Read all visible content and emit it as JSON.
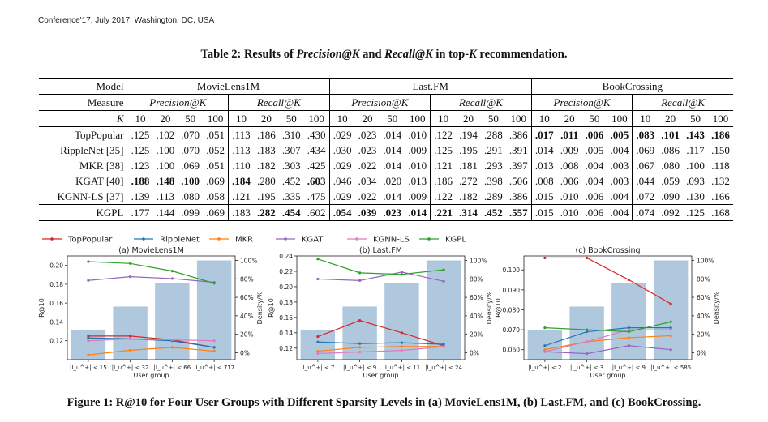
{
  "header": {
    "conference": "Conference'17, July 2017, Washington, DC, USA"
  },
  "table": {
    "caption_prefix": "Table 2: Results of ",
    "caption_precision": "Precision@K",
    "caption_and": " and ",
    "caption_recall": "Recall@K",
    "caption_in_top": " in top-",
    "caption_k": "K",
    "caption_suffix": " recommendation.",
    "model_label": "Model",
    "measure_label": "Measure",
    "k_label": "K",
    "datasets": [
      "MovieLens1M",
      "Last.FM",
      "BookCrossing"
    ],
    "measures": [
      "Precision@K",
      "Recall@K"
    ],
    "ks": [
      "10",
      "20",
      "50",
      "100"
    ],
    "rows": [
      {
        "model": "TopPopular",
        "values": [
          ".125",
          ".102",
          ".070",
          ".051",
          ".113",
          ".186",
          ".310",
          ".430",
          ".029",
          ".023",
          ".014",
          ".010",
          ".122",
          ".194",
          ".288",
          ".386",
          ".017",
          ".011",
          ".006",
          ".005",
          ".083",
          ".101",
          ".143",
          ".186"
        ]
      },
      {
        "model": "RippleNet [35]",
        "values": [
          ".125",
          ".100",
          ".070",
          ".052",
          ".113",
          ".183",
          ".307",
          ".434",
          ".030",
          ".023",
          ".014",
          ".009",
          ".125",
          ".195",
          ".291",
          ".391",
          ".014",
          ".009",
          ".005",
          ".004",
          ".069",
          ".086",
          ".117",
          ".150"
        ]
      },
      {
        "model": "MKR [38]",
        "values": [
          ".123",
          ".100",
          ".069",
          ".051",
          ".110",
          ".182",
          ".303",
          ".425",
          ".029",
          ".022",
          ".014",
          ".010",
          ".121",
          ".181",
          ".293",
          ".397",
          ".013",
          ".008",
          ".004",
          ".003",
          ".067",
          ".080",
          ".100",
          ".118"
        ]
      },
      {
        "model": "KGAT [40]",
        "values": [
          ".188",
          ".148",
          ".100",
          ".069",
          ".184",
          ".280",
          ".452",
          ".603",
          ".046",
          ".034",
          ".020",
          ".013",
          ".186",
          ".272",
          ".398",
          ".506",
          ".008",
          ".006",
          ".004",
          ".003",
          ".044",
          ".059",
          ".093",
          ".132"
        ]
      },
      {
        "model": "KGNN-LS [37]",
        "values": [
          ".139",
          ".113",
          ".080",
          ".058",
          ".121",
          ".195",
          ".335",
          ".475",
          ".029",
          ".022",
          ".014",
          ".009",
          ".122",
          ".182",
          ".289",
          ".386",
          ".015",
          ".010",
          ".006",
          ".004",
          ".072",
          ".090",
          ".130",
          ".166"
        ]
      },
      {
        "model": "KGPL",
        "values": [
          ".177",
          ".144",
          ".099",
          ".069",
          ".183",
          ".282",
          ".454",
          ".602",
          ".054",
          ".039",
          ".023",
          ".014",
          ".221",
          ".314",
          ".452",
          ".557",
          ".015",
          ".010",
          ".006",
          ".004",
          ".074",
          ".092",
          ".125",
          ".168"
        ]
      }
    ],
    "bold": [
      [
        false,
        false,
        false,
        false,
        false,
        false,
        false,
        false,
        false,
        false,
        false,
        false,
        false,
        false,
        false,
        false,
        true,
        true,
        true,
        true,
        true,
        true,
        true,
        true
      ],
      [
        false,
        false,
        false,
        false,
        false,
        false,
        false,
        false,
        false,
        false,
        false,
        false,
        false,
        false,
        false,
        false,
        false,
        false,
        false,
        false,
        false,
        false,
        false,
        false
      ],
      [
        false,
        false,
        false,
        false,
        false,
        false,
        false,
        false,
        false,
        false,
        false,
        false,
        false,
        false,
        false,
        false,
        false,
        false,
        false,
        false,
        false,
        false,
        false,
        false
      ],
      [
        true,
        true,
        true,
        false,
        true,
        false,
        false,
        true,
        false,
        false,
        false,
        false,
        false,
        false,
        false,
        false,
        false,
        false,
        false,
        false,
        false,
        false,
        false,
        false
      ],
      [
        false,
        false,
        false,
        false,
        false,
        false,
        false,
        false,
        false,
        false,
        false,
        false,
        false,
        false,
        false,
        false,
        false,
        false,
        false,
        false,
        false,
        false,
        false,
        false
      ],
      [
        false,
        false,
        false,
        false,
        false,
        true,
        true,
        false,
        true,
        true,
        true,
        true,
        true,
        true,
        true,
        true,
        false,
        false,
        false,
        false,
        false,
        false,
        false,
        false
      ]
    ]
  },
  "figure": {
    "caption": "Figure 1: R@10 for Four User Groups with Different Sparsity Levels in (a) MovieLens1M, (b) Last.FM, and (c) BookCrossing.",
    "legend": [
      {
        "name": "TopPopular",
        "color": "#d62728"
      },
      {
        "name": "RippleNet",
        "color": "#1f77b4"
      },
      {
        "name": "MKR",
        "color": "#ff7f0e"
      },
      {
        "name": "KGAT",
        "color": "#9467bd"
      },
      {
        "name": "KGNN-LS",
        "color": "#e377c2"
      },
      {
        "name": "KGPL",
        "color": "#2ca02c"
      }
    ],
    "bar_color": "#b0c8de"
  },
  "chart_data": [
    {
      "type": "line",
      "title": "(a) MovieLens1M",
      "xlabel": "User group",
      "ylabel": "R@10",
      "ylabel_right": "Density/%",
      "categories": [
        "|I_u^+| < 15",
        "|I_u^+| < 32",
        "|I_u^+| < 66",
        "|I_u^+| < 717"
      ],
      "ylim": [
        0.1,
        0.21
      ],
      "yticks": [
        "0.12",
        "0.14",
        "0.16",
        "0.18",
        "0.20"
      ],
      "ytick_values": [
        0.12,
        0.14,
        0.16,
        0.18,
        0.2
      ],
      "y2ticks": [
        "0%",
        "20%",
        "40%",
        "60%",
        "80%",
        "100%"
      ],
      "density": [
        25,
        50,
        75,
        100
      ],
      "series": [
        {
          "name": "TopPopular",
          "values": [
            0.125,
            0.125,
            0.121,
            0.113
          ]
        },
        {
          "name": "RippleNet",
          "values": [
            0.123,
            0.122,
            0.12,
            0.113
          ]
        },
        {
          "name": "MKR",
          "values": [
            0.105,
            0.11,
            0.113,
            0.109
          ]
        },
        {
          "name": "KGAT",
          "values": [
            0.184,
            0.188,
            0.186,
            0.182
          ]
        },
        {
          "name": "KGNN-LS",
          "values": [
            0.12,
            0.122,
            0.121,
            0.12
          ]
        },
        {
          "name": "KGPL",
          "values": [
            0.204,
            0.202,
            0.194,
            0.181
          ]
        }
      ]
    },
    {
      "type": "line",
      "title": "(b) Last.FM",
      "xlabel": "User group",
      "ylabel": "R@10",
      "ylabel_right": "Density/%",
      "categories": [
        "|I_u^+| < 7",
        "|I_u^+| < 9",
        "|I_u^+| < 11",
        "|I_u^+| < 24"
      ],
      "ylim": [
        0.105,
        0.24
      ],
      "yticks": [
        "0.12",
        "0.14",
        "0.16",
        "0.18",
        "0.20",
        "0.22",
        "0.24"
      ],
      "ytick_values": [
        0.12,
        0.14,
        0.16,
        0.18,
        0.2,
        0.22,
        0.24
      ],
      "y2ticks": [
        "0%",
        "20%",
        "40%",
        "60%",
        "80%",
        "100%"
      ],
      "density": [
        25,
        50,
        75,
        100
      ],
      "series": [
        {
          "name": "TopPopular",
          "values": [
            0.135,
            0.156,
            0.14,
            0.123
          ]
        },
        {
          "name": "RippleNet",
          "values": [
            0.128,
            0.126,
            0.127,
            0.125
          ]
        },
        {
          "name": "MKR",
          "values": [
            0.116,
            0.121,
            0.122,
            0.122
          ]
        },
        {
          "name": "KGAT",
          "values": [
            0.21,
            0.208,
            0.219,
            0.207
          ]
        },
        {
          "name": "KGNN-LS",
          "values": [
            0.113,
            0.115,
            0.117,
            0.122
          ]
        },
        {
          "name": "KGPL",
          "values": [
            0.236,
            0.218,
            0.216,
            0.222
          ]
        }
      ]
    },
    {
      "type": "line",
      "title": "(c) BookCrossing",
      "xlabel": "User group",
      "ylabel": "R@10",
      "ylabel_right": "Density/%",
      "categories": [
        "|I_u^+| < 2",
        "|I_u^+| < 3",
        "|I_u^+| < 9",
        "|I_u^+| < 585"
      ],
      "ylim": [
        0.055,
        0.107
      ],
      "yticks": [
        "0.060",
        "0.070",
        "0.080",
        "0.090",
        "0.100"
      ],
      "ytick_values": [
        0.06,
        0.07,
        0.08,
        0.09,
        0.1
      ],
      "y2ticks": [
        "0%",
        "20%",
        "40%",
        "60%",
        "80%",
        "100%"
      ],
      "density": [
        25,
        50,
        75,
        100
      ],
      "series": [
        {
          "name": "TopPopular",
          "values": [
            0.106,
            0.106,
            0.095,
            0.083
          ]
        },
        {
          "name": "RippleNet",
          "values": [
            0.062,
            0.069,
            0.071,
            0.071
          ]
        },
        {
          "name": "MKR",
          "values": [
            0.06,
            0.064,
            0.066,
            0.067
          ]
        },
        {
          "name": "KGAT",
          "values": [
            0.059,
            0.058,
            0.062,
            0.06
          ]
        },
        {
          "name": "KGNN-LS",
          "values": [
            0.059,
            0.064,
            0.07,
            0.07
          ]
        },
        {
          "name": "KGPL",
          "values": [
            0.071,
            0.07,
            0.069,
            0.074
          ]
        }
      ]
    }
  ]
}
